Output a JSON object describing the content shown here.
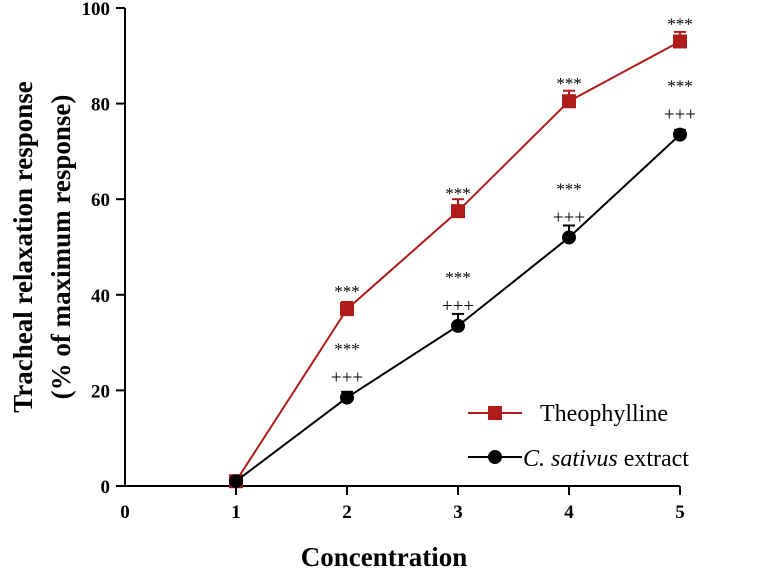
{
  "chart_data": {
    "type": "line",
    "title": "",
    "xlabel": "Concentration",
    "ylabel_line1": "Tracheal relaxation response",
    "ylabel_line2": "(% of maximum response)",
    "xlim": [
      0,
      5
    ],
    "ylim": [
      0,
      100
    ],
    "x_ticks": [
      "0",
      "1",
      "2",
      "3",
      "4",
      "5"
    ],
    "y_ticks": [
      "0",
      "20",
      "40",
      "60",
      "80",
      "100"
    ],
    "grid": false,
    "legend_position": "bottom-right",
    "x": [
      1,
      2,
      3,
      4,
      5
    ],
    "series": [
      {
        "name": "Theophylline",
        "color": "#b01c1c",
        "marker": "square",
        "values": [
          1,
          37,
          57.5,
          80.5,
          93
        ],
        "errors": [
          0.5,
          1.5,
          2.5,
          2.2,
          2
        ],
        "annotations": [
          {
            "x": 2,
            "star": "***"
          },
          {
            "x": 3,
            "star": "***"
          },
          {
            "x": 4,
            "star": "***"
          },
          {
            "x": 5,
            "star": "***"
          }
        ]
      },
      {
        "name_italic": "C. sativus",
        "name_rest": " extract",
        "color": "#000000",
        "marker": "circle",
        "values": [
          1,
          18.5,
          33.5,
          52,
          73.5
        ],
        "errors": [
          0.5,
          1.2,
          2.5,
          2.5,
          1
        ],
        "annotations": [
          {
            "x": 2,
            "star": "***",
            "plus": "+++"
          },
          {
            "x": 3,
            "star": "***",
            "plus": "+++"
          },
          {
            "x": 4,
            "star": "***",
            "plus": "+++"
          },
          {
            "x": 5,
            "star": "***",
            "plus": "+++"
          }
        ]
      }
    ]
  }
}
